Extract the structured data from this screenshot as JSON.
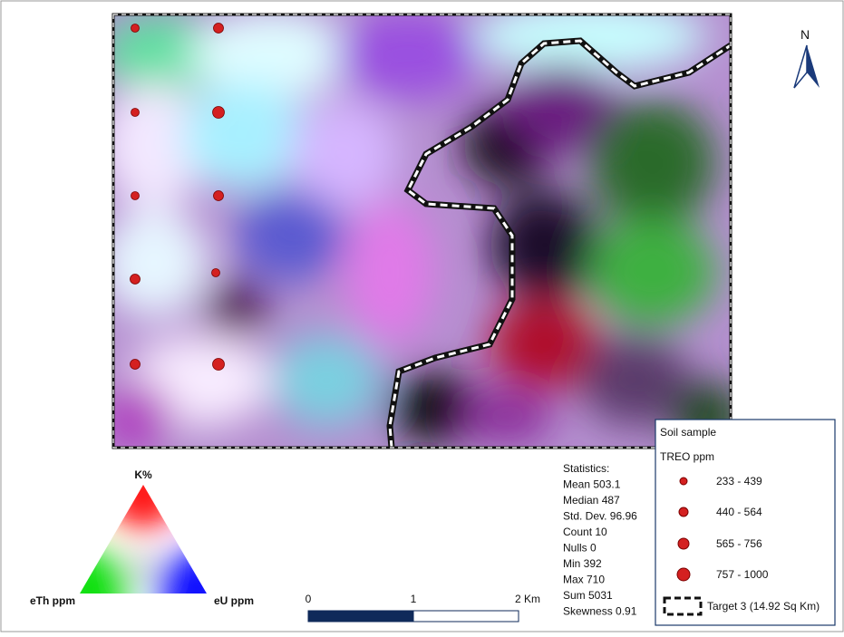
{
  "north": "N",
  "ternary": {
    "top": "K%",
    "left": "eTh ppm",
    "right": "eU ppm"
  },
  "scale": {
    "labels": [
      "0",
      "1",
      "2 Km"
    ]
  },
  "statistics": [
    "Statistics:",
    "Mean 503.1",
    "Median 487",
    "Std. Dev. 96.96",
    "Count 10",
    "Nulls 0",
    "Min 392",
    "Max 710",
    "Sum 5031",
    "Skewness 0.91"
  ],
  "legend": {
    "title": "Soil sample",
    "subtitle": "TREO ppm",
    "classes": [
      "233 - 439",
      "440 - 564",
      "565 - 756",
      "757 - 1000"
    ],
    "target": "Target 3 (14.92 Sq Km)"
  }
}
